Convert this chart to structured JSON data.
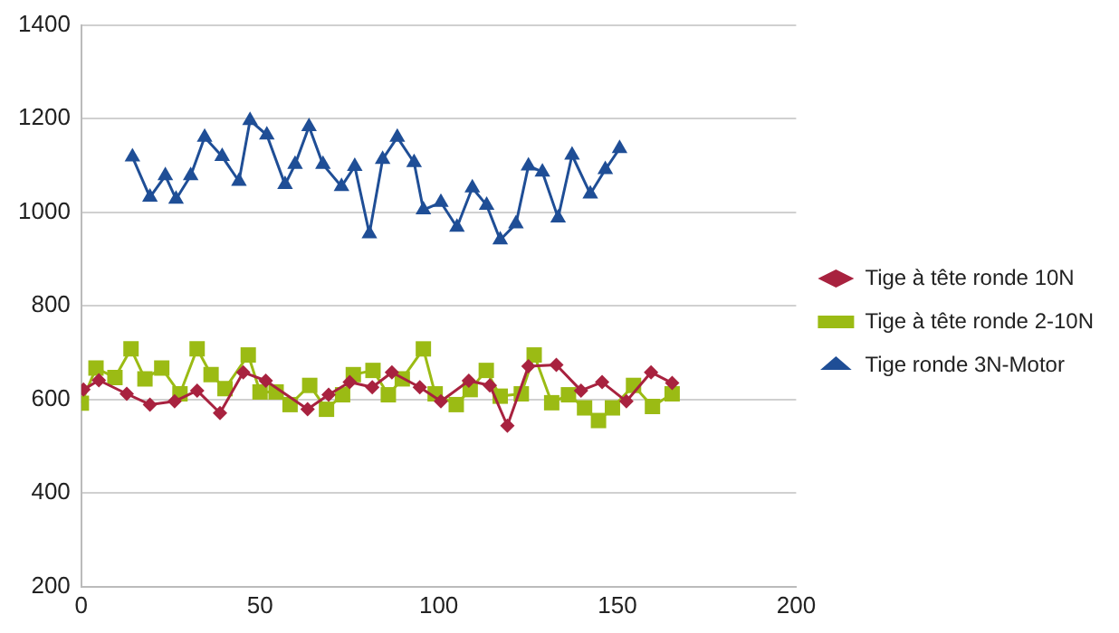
{
  "chart_data": {
    "type": "line",
    "xlim": [
      0,
      200
    ],
    "xticks": [
      0,
      50,
      100,
      150,
      200
    ],
    "ylim": [
      200,
      1400
    ],
    "yticks": [
      200,
      400,
      600,
      800,
      1000,
      1200,
      1400
    ],
    "grid": "y",
    "legend": "right",
    "line_style": "solid",
    "series": [
      {
        "name": "Tige à tête ronde 10N",
        "color": "#a8223f",
        "marker": "diamond",
        "x": [
          0.6,
          4.9,
          12.7,
          19.2,
          26.1,
          32.4,
          38.8,
          45.3,
          51.6,
          63.3,
          69.2,
          75.1,
          81.4,
          86.9,
          94.7,
          100.6,
          108.4,
          114.3,
          119.2,
          125.1,
          132.9,
          139.8,
          145.7,
          152.5,
          159.4,
          165.3
        ],
        "values": [
          621,
          641,
          612,
          589,
          596,
          619,
          571,
          658,
          640,
          579,
          610,
          637,
          626,
          658,
          626,
          596,
          640,
          630,
          544,
          671,
          674,
          619,
          637,
          596,
          658,
          635
        ]
      },
      {
        "name": "Tige à tête ronde 2-10N",
        "color": "#9bbb14",
        "marker": "square",
        "x": [
          0,
          4.1,
          9.4,
          13.9,
          17.8,
          22.5,
          27.6,
          32.4,
          36.3,
          40.2,
          46.7,
          50,
          54.5,
          58.4,
          63.9,
          68.6,
          73.1,
          76.1,
          81.6,
          85.9,
          89.8,
          95.7,
          99,
          104.9,
          108.8,
          113.3,
          117.2,
          123.1,
          126.7,
          131.6,
          136.3,
          140.8,
          144.7,
          148.6,
          154.5,
          159.8,
          165.3
        ],
        "values": [
          592,
          667,
          647,
          708,
          644,
          667,
          612,
          708,
          653,
          623,
          695,
          616,
          616,
          589,
          630,
          579,
          610,
          653,
          662,
          610,
          644,
          708,
          612,
          589,
          621,
          662,
          607,
          612,
          695,
          593,
          610,
          582,
          555,
          582,
          630,
          585,
          612
        ]
      },
      {
        "name": "Tige ronde 3N-Motor",
        "color": "#1f4e96",
        "marker": "triangle",
        "x": [
          14.3,
          19.2,
          23.5,
          26.5,
          30.6,
          34.5,
          39.4,
          44.1,
          47.2,
          51.9,
          57,
          59.8,
          63.7,
          67.6,
          72.8,
          76.5,
          80.6,
          84.3,
          88.4,
          93.1,
          95.7,
          100.6,
          105.1,
          109.4,
          113.4,
          117.2,
          121.6,
          125.1,
          129,
          133.4,
          137.3,
          142.4,
          146.6,
          150.6
        ],
        "values": [
          1118,
          1032,
          1078,
          1028,
          1078,
          1160,
          1119,
          1066,
          1196,
          1165,
          1059,
          1102,
          1183,
          1102,
          1055,
          1098,
          954,
          1113,
          1160,
          1106,
          1005,
          1021,
          968,
          1052,
          1015,
          941,
          975,
          1099,
          1086,
          988,
          1122,
          1039,
          1091,
          1136
        ]
      }
    ]
  }
}
